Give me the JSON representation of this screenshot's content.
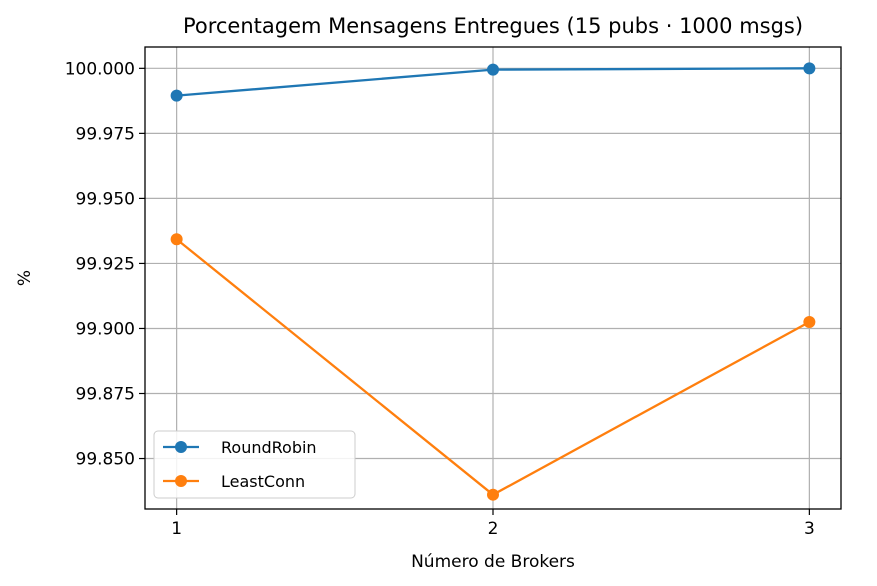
{
  "chart_data": {
    "type": "line",
    "title": "Porcentagem Mensagens Entregues (15 pubs · 1000 msgs)",
    "xlabel": "Número de Brokers",
    "ylabel": "%",
    "x": [
      1,
      2,
      3
    ],
    "x_tick_labels": [
      "1",
      "2",
      "3"
    ],
    "ylim": [
      99.8306,
      100.0082
    ],
    "y_ticks": [
      99.85,
      99.875,
      99.9,
      99.925,
      99.95,
      99.975,
      100.0
    ],
    "y_tick_labels": [
      "99.850",
      "99.875",
      "99.900",
      "99.925",
      "99.950",
      "99.975",
      "100.000"
    ],
    "grid": true,
    "legend_position": "lower-left",
    "series": [
      {
        "name": "RoundRobin",
        "color": "#1f77b4",
        "values": [
          99.9895,
          99.9995,
          100.0
        ]
      },
      {
        "name": "LeastConn",
        "color": "#ff7f0e",
        "values": [
          99.9343,
          99.8361,
          99.9025
        ]
      }
    ]
  }
}
